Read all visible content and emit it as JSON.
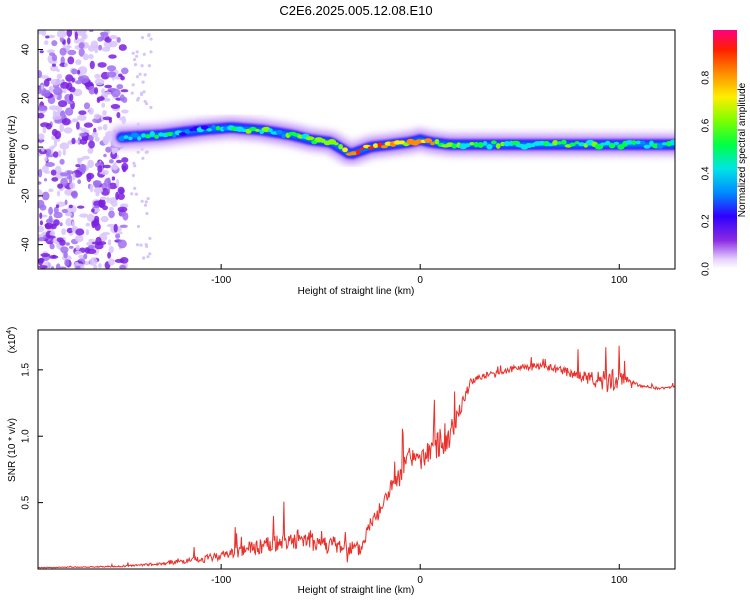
{
  "chart_data": [
    {
      "type": "heatmap",
      "title": "C2E6.2025.005.12.08.E10",
      "xlabel": "Height of straight line (km)",
      "ylabel": "Frequency (Hz)",
      "xlim": [
        -192,
        128
      ],
      "ylim": [
        -50,
        48
      ],
      "xticks": [
        -100,
        0,
        100
      ],
      "xtick_labels": [
        "-100",
        "0",
        "100"
      ],
      "yticks": [
        -40,
        -20,
        0,
        20,
        40
      ],
      "ytick_labels": [
        "-40",
        "-20",
        "0",
        "20",
        "40"
      ],
      "colorbar": {
        "label": "Normalized spectral amplitude",
        "range": [
          0,
          1
        ],
        "ticks": [
          0.0,
          0.2,
          0.4,
          0.6,
          0.8
        ],
        "tick_labels": [
          "0.0",
          "0.2",
          "0.4",
          "0.6",
          "0.8"
        ]
      },
      "ridge": {
        "height_km": [
          -150,
          -130,
          -110,
          -95,
          -80,
          -65,
          -55,
          -45,
          -35,
          -25,
          -15,
          -5,
          0,
          5,
          15,
          30,
          50,
          70,
          90,
          110,
          128
        ],
        "frequency_hz": [
          4,
          5,
          7,
          8,
          7,
          5,
          3,
          2,
          -3,
          0,
          1,
          2,
          3,
          2,
          1,
          1,
          1,
          1,
          1,
          1,
          1
        ],
        "amplitude": [
          0.4,
          0.45,
          0.4,
          0.5,
          0.55,
          0.5,
          0.6,
          0.65,
          0.95,
          0.9,
          0.8,
          0.75,
          0.85,
          0.8,
          0.6,
          0.6,
          0.6,
          0.55,
          0.55,
          0.5,
          0.5
        ]
      },
      "noise_region_km": [
        -192,
        -150
      ]
    },
    {
      "type": "line",
      "xlabel": "Height of straight line (km)",
      "ylabel": "SNR (10 * v/v)",
      "y_multiplier": "(x10^4)",
      "y_multiplier_base": "(x10",
      "y_multiplier_exp": "4",
      "y_multiplier_close": ")",
      "xlim": [
        -192,
        128
      ],
      "ylim": [
        0,
        1.8
      ],
      "xticks": [
        -100,
        0,
        100
      ],
      "xtick_labels": [
        "-100",
        "0",
        "100"
      ],
      "yticks": [
        0.5,
        1.0,
        1.5
      ],
      "ytick_labels": [
        "0.5",
        "1.0",
        "1.5"
      ],
      "color": "#e8312b",
      "series": [
        {
          "name": "SNR",
          "x": [
            -192,
            -150,
            -130,
            -110,
            -95,
            -80,
            -70,
            -60,
            -50,
            -40,
            -30,
            -25,
            -20,
            -15,
            -10,
            -5,
            0,
            5,
            10,
            15,
            20,
            25,
            30,
            40,
            50,
            60,
            70,
            80,
            90,
            95,
            100,
            110,
            120,
            128
          ],
          "y": [
            0.01,
            0.02,
            0.04,
            0.07,
            0.12,
            0.17,
            0.2,
            0.23,
            0.2,
            0.17,
            0.14,
            0.35,
            0.45,
            0.6,
            0.7,
            0.85,
            0.8,
            0.9,
            0.95,
            1.0,
            1.2,
            1.4,
            1.45,
            1.48,
            1.52,
            1.53,
            1.5,
            1.45,
            1.42,
            1.4,
            1.45,
            1.38,
            1.36,
            1.37
          ],
          "noise": [
            0.004,
            0.01,
            0.02,
            0.05,
            0.08,
            0.12,
            0.14,
            0.16,
            0.15,
            0.14,
            0.12,
            0.12,
            0.14,
            0.15,
            0.15,
            0.18,
            0.14,
            0.18,
            0.22,
            0.16,
            0.1,
            0.06,
            0.05,
            0.04,
            0.05,
            0.05,
            0.06,
            0.08,
            0.14,
            0.22,
            0.1,
            0.02,
            0.02,
            0.02
          ]
        }
      ]
    }
  ]
}
